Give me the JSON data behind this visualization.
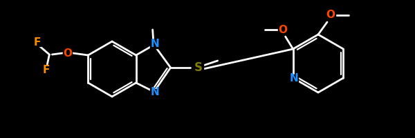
{
  "bg": "#000000",
  "bc": "#ffffff",
  "Nc": "#1e90ff",
  "Oc": "#ff4500",
  "Sc": "#808000",
  "Fc": "#ff8c00",
  "figsize": [
    6.0,
    2.0
  ],
  "dpi": 100,
  "xlim": [
    0,
    600
  ],
  "ylim": [
    0,
    200
  ]
}
